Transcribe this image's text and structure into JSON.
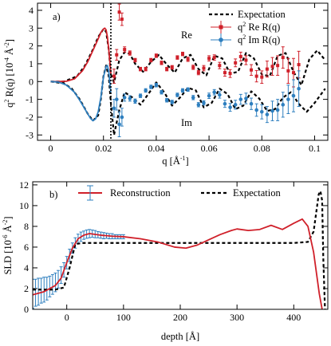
{
  "chart_data": [
    {
      "panel": "a)",
      "type": "scatter",
      "xlabel_main": "q [Å",
      "xlabel_sup": "-1",
      "xlabel_end": "]",
      "ylabel_main": "q",
      "ylabel_sup1": "2",
      "ylabel_mid": " R(q)  [10",
      "ylabel_sup2": "-4",
      "ylabel_unit": " Å",
      "ylabel_sup3": "-2",
      "ylabel_end": "]",
      "xlim": [
        -0.005,
        0.105
      ],
      "ylim": [
        -3.3,
        4.4
      ],
      "xticks": [
        "0",
        "0.02",
        "0.04",
        "0.06",
        "0.08",
        "0.1"
      ],
      "xtick_values": [
        0,
        0.02,
        0.04,
        0.06,
        0.08,
        0.1
      ],
      "yticks": [
        "-3",
        "-2",
        "-1",
        "0",
        "1",
        "2",
        "3",
        "4"
      ],
      "ytick_values": [
        -3,
        -2,
        -1,
        0,
        1,
        2,
        3,
        4
      ],
      "legend": {
        "expectation": "Expectation",
        "re_pre": "q",
        "re_sup": "2",
        "re_post": " Re R(q)",
        "im_pre": "q",
        "im_sup": "2",
        "im_post": " Im R(q)"
      },
      "annotations": {
        "re": "Re",
        "im": "Im"
      },
      "cutoff_q": 0.0228,
      "series": [
        {
          "name": "Re expectation",
          "style": "dashed",
          "color": "#000000",
          "x": [
            0.0,
            0.005,
            0.01,
            0.013,
            0.016,
            0.018,
            0.02,
            0.021,
            0.022,
            0.0228,
            0.024,
            0.026,
            0.028,
            0.03,
            0.032,
            0.035,
            0.038,
            0.041,
            0.044,
            0.047,
            0.05,
            0.053,
            0.056,
            0.059,
            0.062,
            0.065,
            0.068,
            0.071,
            0.074,
            0.077,
            0.08,
            0.083,
            0.086,
            0.089,
            0.092,
            0.095,
            0.098,
            0.101,
            0.104
          ],
          "y": [
            0.0,
            0.0,
            0.3,
            0.9,
            1.8,
            2.5,
            2.95,
            2.8,
            1.8,
            0.4,
            -0.05,
            1.2,
            1.65,
            1.55,
            1.0,
            0.55,
            1.1,
            1.5,
            0.95,
            0.5,
            1.3,
            1.5,
            0.7,
            0.35,
            1.45,
            1.3,
            0.45,
            0.55,
            1.6,
            1.3,
            0.4,
            0.3,
            1.45,
            1.6,
            0.55,
            -0.2,
            1.25,
            1.75,
            1.2
          ]
        },
        {
          "name": "Im expectation",
          "style": "dashed",
          "color": "#000000",
          "x": [
            0.0,
            0.005,
            0.008,
            0.011,
            0.014,
            0.016,
            0.018,
            0.019,
            0.02,
            0.021,
            0.022,
            0.0228,
            0.024,
            0.026,
            0.028,
            0.031,
            0.034,
            0.037,
            0.04,
            0.043,
            0.046,
            0.049,
            0.052,
            0.055,
            0.058,
            0.061,
            0.064,
            0.067,
            0.07,
            0.073,
            0.076,
            0.079,
            0.082,
            0.085,
            0.088,
            0.091,
            0.094,
            0.097,
            0.1,
            0.104
          ],
          "y": [
            0.0,
            -0.1,
            -0.4,
            -1.0,
            -1.8,
            -2.2,
            -1.9,
            -1.0,
            0.3,
            0.9,
            0.3,
            -1.2,
            -3.0,
            -1.6,
            -0.6,
            -0.9,
            -1.3,
            -0.7,
            -0.05,
            -0.6,
            -1.35,
            -0.9,
            -0.35,
            -0.5,
            -1.45,
            -1.2,
            -0.4,
            -0.7,
            -1.55,
            -1.35,
            -0.55,
            -0.95,
            -1.65,
            -1.55,
            -0.9,
            -0.6,
            -1.25,
            -1.7,
            -1.2,
            -0.4
          ]
        },
        {
          "name": "Re fit",
          "style": "solid",
          "color": "#d0202a",
          "x": [
            0.0,
            0.003,
            0.006,
            0.009,
            0.012,
            0.014,
            0.016,
            0.018,
            0.019,
            0.02,
            0.0205,
            0.021,
            0.0215,
            0.022,
            0.0228
          ],
          "y": [
            0.0,
            0.0,
            0.02,
            0.15,
            0.6,
            1.1,
            1.75,
            2.4,
            2.75,
            2.95,
            3.0,
            2.9,
            2.5,
            1.8,
            0.45
          ]
        },
        {
          "name": "Im fit",
          "style": "solid",
          "color": "#2e7fbf",
          "x": [
            0.0,
            0.003,
            0.006,
            0.009,
            0.011,
            0.013,
            0.015,
            0.016,
            0.017,
            0.018,
            0.019,
            0.02,
            0.021,
            0.0215,
            0.022,
            0.0228
          ],
          "y": [
            0.0,
            -0.03,
            -0.2,
            -0.6,
            -1.05,
            -1.55,
            -2.05,
            -2.2,
            -2.1,
            -1.7,
            -0.9,
            0.25,
            0.85,
            0.9,
            0.55,
            -0.6
          ]
        },
        {
          "name": "q² Re R(q)",
          "style": "markers",
          "color": "#d0202a",
          "x": [
            0.024,
            0.025,
            0.026,
            0.027,
            0.028,
            0.03,
            0.032,
            0.034,
            0.036,
            0.038,
            0.04,
            0.042,
            0.044,
            0.046,
            0.048,
            0.05,
            0.052,
            0.054,
            0.056,
            0.058,
            0.06,
            0.062,
            0.064,
            0.066,
            0.068,
            0.07,
            0.072,
            0.074,
            0.076,
            0.078,
            0.08,
            0.082,
            0.084,
            0.086,
            0.088,
            0.09,
            0.092,
            0.094
          ],
          "y": [
            0.3,
            1.5,
            3.9,
            3.5,
            1.8,
            1.6,
            1.2,
            0.7,
            0.7,
            1.2,
            1.45,
            1.05,
            0.7,
            0.8,
            1.35,
            1.55,
            1.25,
            0.8,
            0.5,
            0.75,
            1.3,
            1.35,
            0.9,
            0.5,
            0.45,
            1.05,
            1.4,
            1.2,
            0.65,
            0.3,
            0.25,
            0.7,
            0.85,
            0.9,
            1.35,
            0.6,
            0.5,
            0.95
          ],
          "err": [
            0.4,
            0.3,
            0.45,
            0.35,
            0.15,
            0.12,
            0.1,
            0.1,
            0.1,
            0.1,
            0.1,
            0.1,
            0.1,
            0.1,
            0.1,
            0.1,
            0.12,
            0.12,
            0.12,
            0.15,
            0.15,
            0.15,
            0.18,
            0.2,
            0.22,
            0.22,
            0.25,
            0.25,
            0.3,
            0.32,
            0.35,
            0.45,
            0.5,
            0.55,
            0.6,
            0.7,
            0.8,
            0.75
          ]
        },
        {
          "name": "q² Im R(q)",
          "style": "markers",
          "color": "#2e7fbf",
          "x": [
            0.024,
            0.025,
            0.026,
            0.027,
            0.028,
            0.03,
            0.032,
            0.034,
            0.036,
            0.038,
            0.04,
            0.042,
            0.044,
            0.046,
            0.048,
            0.05,
            0.052,
            0.054,
            0.056,
            0.058,
            0.06,
            0.062,
            0.064,
            0.066,
            0.068,
            0.07,
            0.072,
            0.074,
            0.076,
            0.078,
            0.08,
            0.082,
            0.084,
            0.086,
            0.088,
            0.09,
            0.092,
            0.094
          ],
          "y": [
            -1.5,
            -1.0,
            -2.4,
            -2.0,
            -0.9,
            -0.95,
            -1.1,
            -0.8,
            -0.5,
            -0.3,
            -0.2,
            -0.6,
            -1.05,
            -1.15,
            -0.75,
            -0.5,
            -0.45,
            -0.9,
            -1.3,
            -1.2,
            -0.8,
            -0.6,
            -0.75,
            -1.25,
            -1.45,
            -1.3,
            -1.0,
            -0.95,
            -1.25,
            -1.6,
            -1.7,
            -1.85,
            -1.65,
            -1.6,
            -1.3,
            -1.0,
            -0.8,
            -0.4
          ],
          "err": [
            0.5,
            0.6,
            0.7,
            0.5,
            0.2,
            0.15,
            0.12,
            0.1,
            0.1,
            0.1,
            0.1,
            0.1,
            0.1,
            0.1,
            0.1,
            0.1,
            0.1,
            0.12,
            0.12,
            0.12,
            0.15,
            0.15,
            0.18,
            0.2,
            0.22,
            0.25,
            0.28,
            0.3,
            0.32,
            0.35,
            0.4,
            0.45,
            0.55,
            0.6,
            0.7,
            0.8,
            0.9,
            1.0
          ]
        }
      ]
    },
    {
      "panel": "b)",
      "type": "line",
      "xlabel": "depth [Å]",
      "ylabel_main": "SLD [10",
      "ylabel_sup1": "-6",
      "ylabel_unit": " Å",
      "ylabel_sup2": "-2",
      "ylabel_end": "]",
      "xlim": [
        -60,
        460
      ],
      "ylim": [
        0,
        12.3
      ],
      "xticks": [
        "0",
        "100",
        "200",
        "300",
        "400"
      ],
      "xtick_values": [
        0,
        100,
        200,
        300,
        400
      ],
      "yticks": [
        "0",
        "2",
        "4",
        "6",
        "8",
        "10",
        "12"
      ],
      "ytick_values": [
        0,
        2,
        4,
        6,
        8,
        10,
        12
      ],
      "legend": {
        "reconstruction": "Reconstruction",
        "expectation": "Expectation"
      },
      "series": [
        {
          "name": "Expectation",
          "style": "dashed",
          "color": "#000000",
          "x": [
            -60,
            -20,
            -5,
            5,
            15,
            30,
            60,
            100,
            200,
            300,
            400,
            425,
            435,
            440,
            444,
            447,
            450,
            452,
            455
          ],
          "y": [
            1.9,
            1.9,
            2.1,
            4.0,
            6.3,
            6.4,
            6.4,
            6.4,
            6.4,
            6.4,
            6.4,
            6.5,
            7.5,
            9.5,
            11.1,
            11.4,
            10.5,
            5.0,
            0.0
          ]
        },
        {
          "name": "Reconstruction",
          "style": "solid",
          "color": "#d0202a",
          "x": [
            -60,
            -40,
            -20,
            -10,
            0,
            10,
            20,
            30,
            40,
            60,
            80,
            100,
            130,
            160,
            190,
            210,
            230,
            250,
            270,
            290,
            300,
            320,
            340,
            360,
            380,
            400,
            415,
            425,
            435,
            440,
            445,
            450
          ],
          "y": [
            1.4,
            1.7,
            2.3,
            3.0,
            4.5,
            5.9,
            6.8,
            7.15,
            7.3,
            7.15,
            7.05,
            7.0,
            6.8,
            6.5,
            6.0,
            5.9,
            6.2,
            6.7,
            7.2,
            7.6,
            7.75,
            7.6,
            7.7,
            8.1,
            7.7,
            8.3,
            8.7,
            8.0,
            5.5,
            3.5,
            1.5,
            0.0
          ]
        },
        {
          "name": "Reconstruction error",
          "style": "errorbars",
          "color": "#2e7fbf",
          "x": [
            -60,
            -55,
            -50,
            -45,
            -40,
            -35,
            -30,
            -25,
            -20,
            -15,
            -10,
            -5,
            0,
            5,
            10,
            15,
            20,
            25,
            30,
            35,
            40,
            45,
            50,
            55,
            60,
            65,
            70,
            75,
            80,
            85,
            90,
            95,
            100
          ],
          "y": [
            1.5,
            1.6,
            1.7,
            1.8,
            1.9,
            2.0,
            2.2,
            2.4,
            2.6,
            2.9,
            3.3,
            3.8,
            4.5,
            5.2,
            5.9,
            6.4,
            6.8,
            7.0,
            7.15,
            7.25,
            7.3,
            7.3,
            7.25,
            7.2,
            7.15,
            7.1,
            7.1,
            7.05,
            7.05,
            7.0,
            7.0,
            7.0,
            7.0
          ],
          "err": [
            1.4,
            1.3,
            1.3,
            1.2,
            1.2,
            1.1,
            1.0,
            0.95,
            0.9,
            0.85,
            0.8,
            0.7,
            0.6,
            0.6,
            0.5,
            0.5,
            0.45,
            0.45,
            0.4,
            0.4,
            0.4,
            0.35,
            0.35,
            0.3,
            0.3,
            0.3,
            0.25,
            0.25,
            0.25,
            0.2,
            0.2,
            0.2,
            0.2
          ]
        }
      ]
    }
  ]
}
